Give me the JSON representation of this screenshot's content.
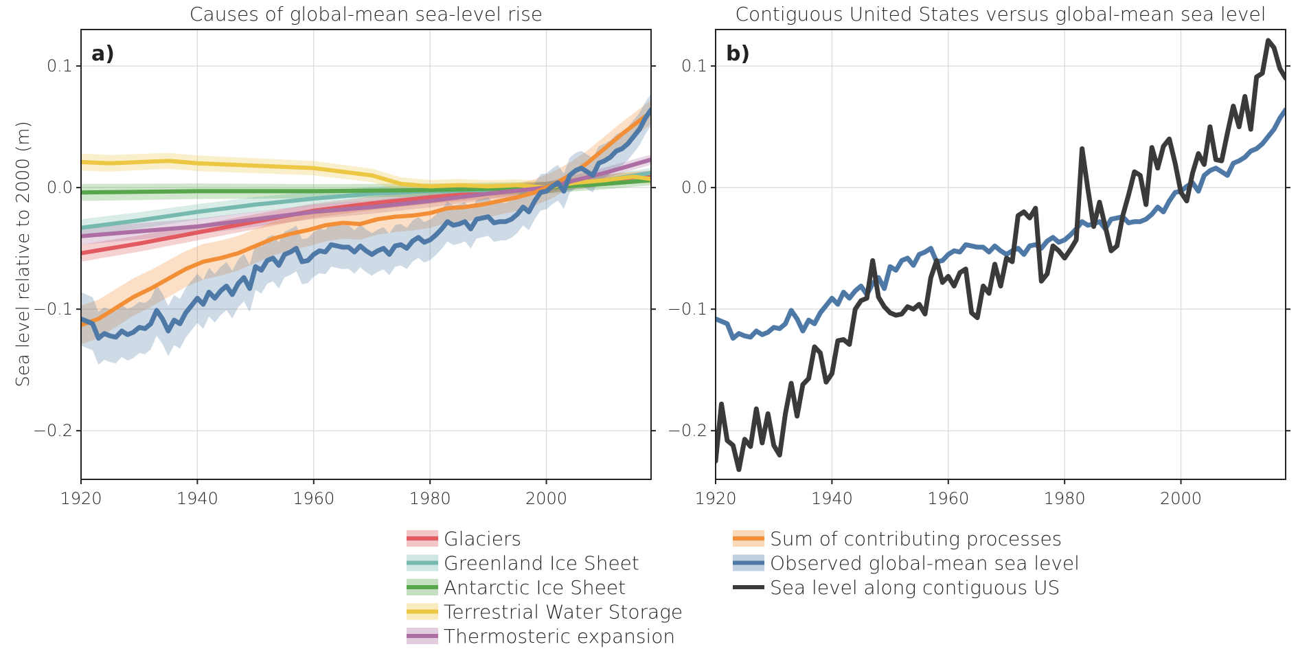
{
  "colors": {
    "glaciers": "#e05a5f",
    "greenland": "#76b9ae",
    "antarctic": "#57a64b",
    "tws": "#ebc743",
    "thermo": "#ad6fa3",
    "sum": "#f28e35",
    "observed": "#4e79a7",
    "us": "#3a3a3a"
  },
  "chart_data": [
    {
      "type": "line",
      "panel_label": "a)",
      "title": "Causes of global-mean sea-level rise",
      "xlabel": "",
      "ylabel": "Sea level relative to 2000 (m)",
      "xlim": [
        1920,
        2018
      ],
      "ylim": [
        -0.24,
        0.13
      ],
      "xticks": [
        "1920",
        "1940",
        "1960",
        "1980",
        "2000"
      ],
      "yticks": [
        "0.1",
        "0.0",
        "−0.1",
        "−0.2"
      ],
      "grid": true,
      "series": [
        {
          "name": "Glaciers",
          "key": "glaciers",
          "band": true,
          "x": [
            1920,
            1930,
            1940,
            1950,
            1960,
            1970,
            1980,
            1990,
            2000,
            2010,
            2018
          ],
          "y": [
            -0.054,
            -0.046,
            -0.037,
            -0.028,
            -0.019,
            -0.013,
            -0.008,
            -0.004,
            0.0,
            0.006,
            0.01
          ]
        },
        {
          "name": "Greenland Ice Sheet",
          "key": "greenland",
          "band": true,
          "x": [
            1920,
            1930,
            1940,
            1950,
            1960,
            1970,
            1980,
            1990,
            2000,
            2010,
            2018
          ],
          "y": [
            -0.033,
            -0.027,
            -0.02,
            -0.014,
            -0.009,
            -0.005,
            -0.003,
            -0.002,
            0.0,
            0.006,
            0.012
          ]
        },
        {
          "name": "Antarctic Ice Sheet",
          "key": "antarctic",
          "band": true,
          "x": [
            1920,
            1940,
            1960,
            1980,
            2000,
            2010,
            2018
          ],
          "y": [
            -0.004,
            -0.003,
            -0.003,
            -0.002,
            0.0,
            0.003,
            0.006
          ]
        },
        {
          "name": "Terrestrial Water Storage",
          "key": "tws",
          "band": true,
          "x": [
            1920,
            1925,
            1930,
            1935,
            1940,
            1945,
            1950,
            1955,
            1960,
            1965,
            1970,
            1975,
            1980,
            1985,
            1990,
            1995,
            2000,
            2005,
            2010,
            2015,
            2018
          ],
          "y": [
            0.021,
            0.02,
            0.021,
            0.022,
            0.02,
            0.019,
            0.018,
            0.017,
            0.016,
            0.013,
            0.01,
            0.003,
            0.001,
            0.002,
            0.001,
            0.002,
            0.0,
            0.004,
            0.006,
            0.009,
            0.007
          ]
        },
        {
          "name": "Thermosteric expansion",
          "key": "thermo",
          "band": true,
          "x": [
            1920,
            1930,
            1940,
            1950,
            1960,
            1970,
            1980,
            1990,
            2000,
            2010,
            2018
          ],
          "y": [
            -0.04,
            -0.036,
            -0.032,
            -0.026,
            -0.02,
            -0.016,
            -0.011,
            -0.005,
            0.0,
            0.012,
            0.023
          ]
        },
        {
          "name": "Sum of contributing processes",
          "key": "sum",
          "band": true,
          "band_width": 0.016,
          "x": [
            1920,
            1923,
            1926,
            1929,
            1932,
            1935,
            1938,
            1941,
            1944,
            1947,
            1950,
            1953,
            1956,
            1959,
            1962,
            1965,
            1968,
            1971,
            1974,
            1977,
            1980,
            1983,
            1986,
            1989,
            1992,
            1995,
            1998,
            2001,
            2004,
            2007,
            2010,
            2013,
            2016,
            2018
          ],
          "y": [
            -0.113,
            -0.108,
            -0.099,
            -0.09,
            -0.083,
            -0.075,
            -0.067,
            -0.061,
            -0.058,
            -0.054,
            -0.048,
            -0.042,
            -0.038,
            -0.035,
            -0.031,
            -0.029,
            -0.03,
            -0.026,
            -0.024,
            -0.023,
            -0.021,
            -0.017,
            -0.016,
            -0.014,
            -0.011,
            -0.008,
            -0.004,
            0.002,
            0.01,
            0.02,
            0.032,
            0.044,
            0.055,
            0.062
          ]
        },
        {
          "name": "Observed global-mean sea level",
          "key": "observed",
          "band": true,
          "band_width": 0.022,
          "x": [
            1920,
            1921,
            1922,
            1923,
            1924,
            1925,
            1926,
            1927,
            1928,
            1929,
            1930,
            1931,
            1932,
            1933,
            1934,
            1935,
            1936,
            1937,
            1938,
            1939,
            1940,
            1941,
            1942,
            1943,
            1944,
            1945,
            1946,
            1947,
            1948,
            1949,
            1950,
            1951,
            1952,
            1953,
            1954,
            1955,
            1956,
            1957,
            1958,
            1959,
            1960,
            1961,
            1962,
            1963,
            1964,
            1965,
            1966,
            1967,
            1968,
            1969,
            1970,
            1971,
            1972,
            1973,
            1974,
            1975,
            1976,
            1977,
            1978,
            1979,
            1980,
            1981,
            1982,
            1983,
            1984,
            1985,
            1986,
            1987,
            1988,
            1989,
            1990,
            1991,
            1992,
            1993,
            1994,
            1995,
            1996,
            1997,
            1998,
            1999,
            2000,
            2001,
            2002,
            2003,
            2004,
            2005,
            2006,
            2007,
            2008,
            2009,
            2010,
            2011,
            2012,
            2013,
            2014,
            2015,
            2016,
            2017,
            2018
          ],
          "y": [
            -0.108,
            -0.11,
            -0.112,
            -0.124,
            -0.12,
            -0.122,
            -0.123,
            -0.118,
            -0.121,
            -0.119,
            -0.115,
            -0.116,
            -0.112,
            -0.101,
            -0.108,
            -0.118,
            -0.109,
            -0.112,
            -0.103,
            -0.097,
            -0.091,
            -0.096,
            -0.086,
            -0.091,
            -0.085,
            -0.081,
            -0.088,
            -0.079,
            -0.074,
            -0.083,
            -0.065,
            -0.068,
            -0.06,
            -0.058,
            -0.064,
            -0.055,
            -0.053,
            -0.05,
            -0.061,
            -0.06,
            -0.055,
            -0.052,
            -0.053,
            -0.047,
            -0.048,
            -0.049,
            -0.049,
            -0.053,
            -0.048,
            -0.052,
            -0.055,
            -0.052,
            -0.05,
            -0.055,
            -0.048,
            -0.047,
            -0.05,
            -0.044,
            -0.041,
            -0.045,
            -0.043,
            -0.039,
            -0.034,
            -0.028,
            -0.031,
            -0.03,
            -0.028,
            -0.034,
            -0.026,
            -0.025,
            -0.024,
            -0.029,
            -0.028,
            -0.028,
            -0.026,
            -0.022,
            -0.016,
            -0.02,
            -0.011,
            -0.004,
            -0.003,
            0.001,
            0.004,
            -0.003,
            0.01,
            0.014,
            0.016,
            0.013,
            0.01,
            0.02,
            0.022,
            0.025,
            0.03,
            0.032,
            0.036,
            0.042,
            0.048,
            0.057,
            0.064
          ]
        }
      ]
    },
    {
      "type": "line",
      "panel_label": "b)",
      "title": "Contiguous United States versus global-mean sea level",
      "xlabel": "",
      "ylabel": "",
      "xlim": [
        1920,
        2018
      ],
      "ylim": [
        -0.24,
        0.13
      ],
      "xticks": [
        "1920",
        "1940",
        "1960",
        "1980",
        "2000"
      ],
      "yticks": [
        "0.1",
        "0.0",
        "−0.1",
        "−0.2"
      ],
      "grid": true,
      "series": [
        {
          "name": "Observed global-mean sea level",
          "key": "observed",
          "band": false,
          "same_as_panel_a": "observed"
        },
        {
          "name": "Sea level along contiguous US",
          "key": "us",
          "band": false,
          "x": [
            1920,
            1921,
            1922,
            1923,
            1924,
            1925,
            1926,
            1927,
            1928,
            1929,
            1930,
            1931,
            1932,
            1933,
            1934,
            1935,
            1936,
            1937,
            1938,
            1939,
            1940,
            1941,
            1942,
            1943,
            1944,
            1945,
            1946,
            1947,
            1948,
            1949,
            1950,
            1951,
            1952,
            1953,
            1954,
            1955,
            1956,
            1957,
            1958,
            1959,
            1960,
            1961,
            1962,
            1963,
            1964,
            1965,
            1966,
            1967,
            1968,
            1969,
            1970,
            1971,
            1972,
            1973,
            1974,
            1975,
            1976,
            1977,
            1978,
            1979,
            1980,
            1981,
            1982,
            1983,
            1984,
            1985,
            1986,
            1987,
            1988,
            1989,
            1990,
            1991,
            1992,
            1993,
            1994,
            1995,
            1996,
            1997,
            1998,
            1999,
            2000,
            2001,
            2002,
            2003,
            2004,
            2005,
            2006,
            2007,
            2008,
            2009,
            2010,
            2011,
            2012,
            2013,
            2014,
            2015,
            2016,
            2017,
            2018
          ],
          "y": [
            -0.225,
            -0.178,
            -0.208,
            -0.212,
            -0.232,
            -0.207,
            -0.213,
            -0.182,
            -0.21,
            -0.186,
            -0.212,
            -0.22,
            -0.186,
            -0.161,
            -0.188,
            -0.162,
            -0.157,
            -0.131,
            -0.136,
            -0.16,
            -0.153,
            -0.126,
            -0.125,
            -0.129,
            -0.1,
            -0.093,
            -0.091,
            -0.06,
            -0.09,
            -0.098,
            -0.103,
            -0.105,
            -0.104,
            -0.098,
            -0.1,
            -0.096,
            -0.104,
            -0.074,
            -0.06,
            -0.078,
            -0.073,
            -0.081,
            -0.07,
            -0.067,
            -0.103,
            -0.107,
            -0.081,
            -0.087,
            -0.063,
            -0.081,
            -0.058,
            -0.061,
            -0.023,
            -0.02,
            -0.025,
            -0.017,
            -0.077,
            -0.071,
            -0.048,
            -0.052,
            -0.058,
            -0.051,
            -0.043,
            0.032,
            -0.001,
            -0.032,
            -0.012,
            -0.032,
            -0.052,
            -0.048,
            -0.023,
            -0.006,
            0.013,
            0.01,
            -0.014,
            0.033,
            0.016,
            0.034,
            0.04,
            0.02,
            -0.004,
            -0.011,
            0.012,
            0.028,
            0.019,
            0.05,
            0.023,
            0.022,
            0.045,
            0.067,
            0.05,
            0.075,
            0.048,
            0.091,
            0.094,
            0.121,
            0.115,
            0.098,
            0.09
          ]
        }
      ]
    }
  ],
  "legend": {
    "left_col": [
      {
        "label": "Glaciers",
        "key": "glaciers"
      },
      {
        "label": "Greenland Ice Sheet",
        "key": "greenland"
      },
      {
        "label": "Antarctic Ice Sheet",
        "key": "antarctic"
      },
      {
        "label": "Terrestrial Water Storage",
        "key": "tws"
      },
      {
        "label": "Thermosteric expansion",
        "key": "thermo"
      }
    ],
    "right_col": [
      {
        "label": "Sum of contributing processes",
        "key": "sum",
        "band": true
      },
      {
        "label": "Observed global-mean sea level",
        "key": "observed",
        "band": true
      },
      {
        "label": "Sea level along contiguous US",
        "key": "us",
        "band": false
      }
    ]
  }
}
